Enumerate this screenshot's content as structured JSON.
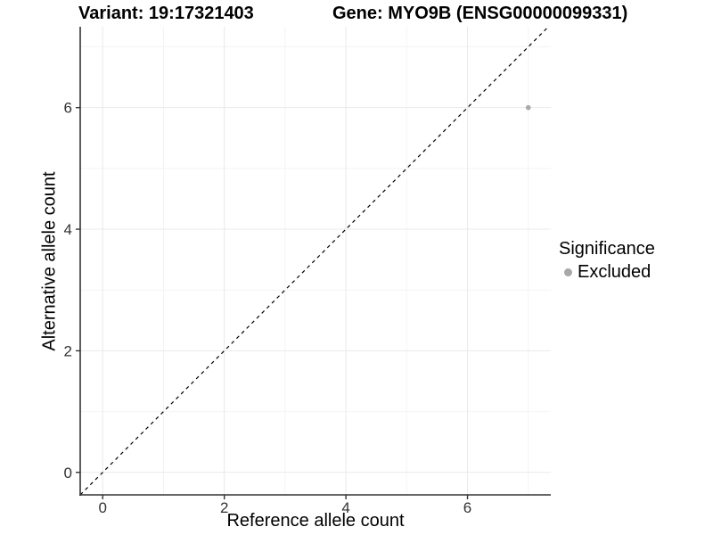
{
  "title": {
    "variant": "Variant: 19:17321403",
    "gene": "Gene: MYO9B (ENSG00000099331)"
  },
  "legend": {
    "title": "Significance",
    "items": [
      {
        "label": "Excluded",
        "color": "#a8a8a8"
      }
    ]
  },
  "chart_data": {
    "type": "scatter",
    "title": "Variant: 19:17321403    Gene: MYO9B (ENSG00000099331)",
    "xlabel": "Reference allele count",
    "ylabel": "Alternative allele count",
    "xlim": [
      -0.37,
      7.37
    ],
    "ylim": [
      -0.37,
      7.33
    ],
    "x_ticks": [
      0,
      2,
      4,
      6
    ],
    "y_ticks": [
      0,
      2,
      4,
      6
    ],
    "x_minor_ticks": [
      1,
      3,
      5,
      7
    ],
    "y_minor_ticks": [
      1,
      3,
      5,
      7
    ],
    "grid": "major+minor",
    "legend_position": "right",
    "series": [
      {
        "name": "Excluded",
        "color": "#a8a8a8",
        "marker": "circle",
        "points": [
          {
            "x": 7,
            "y": 6
          }
        ]
      }
    ],
    "reference_line": {
      "kind": "identity y=x",
      "style": "dashed",
      "color": "#000000",
      "from": [
        -0.37,
        -0.37
      ],
      "to": [
        7.33,
        7.33
      ]
    }
  },
  "colors": {
    "background": "#ffffff",
    "panel_background": "#ffffff",
    "grid_major": "#e9e9e9",
    "grid_minor": "#f4f4f4",
    "axis_line": "#333333",
    "tick_label": "#333333",
    "text": "#000000"
  }
}
